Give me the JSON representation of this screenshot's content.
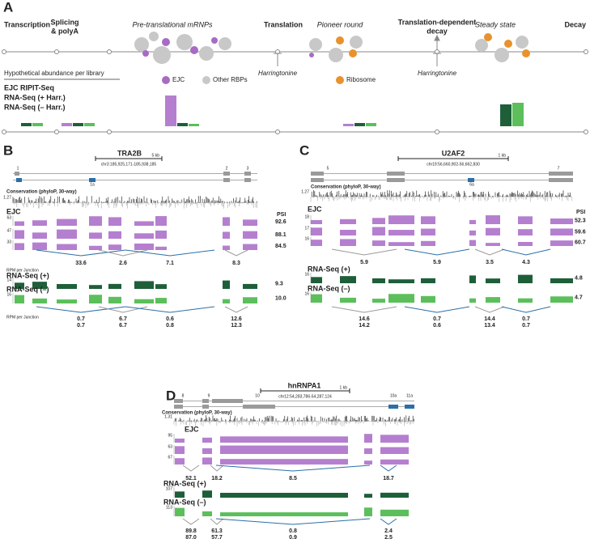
{
  "panel_a": {
    "label": "A",
    "stages": [
      [
        "Transcription"
      ],
      [
        "Splicing",
        "& polyA"
      ],
      [
        "Pre-translational mRNPs"
      ],
      [
        "Translation"
      ],
      [
        "Pioneer round"
      ],
      [
        "Translation-dependent",
        "decay"
      ],
      [
        "Steady state"
      ],
      [
        "Decay"
      ]
    ],
    "harringtonine": [
      "Harringtonine",
      "Harringtonine"
    ],
    "legend": [
      "EJC",
      "Other RBPs",
      "Ribosome"
    ],
    "abundance_title": "Hypothetical abundance per library",
    "libraries": [
      "EJC RIPIT-Seq",
      "RNA-Seq (+ Harr.)",
      "RNA-Seq (– Harr.)"
    ]
  },
  "panel_b": {
    "label": "B",
    "gene": "TRA2B",
    "scale": "5 kb",
    "coords": "chr3:185,925,171-185,938,185",
    "exons": [
      "1",
      "1a",
      "2",
      "3"
    ],
    "conservation_label": "Conservation (phyloP, 30-way)",
    "conservation_scale": "1.27",
    "ejc_label": "EJC",
    "psi_label": "PSI",
    "ejc_scales": [
      "63",
      "47",
      "33"
    ],
    "psi": [
      "92.6",
      "88.1",
      "84.5"
    ],
    "ejc_junctions": [
      "33.6",
      "2.6",
      "7.1",
      "8.3"
    ],
    "junction_label": "RPM per Junction",
    "seq_plus": {
      "label": "RNA-Seq (+)",
      "scale": "14",
      "psi": "9.3"
    },
    "seq_minus": {
      "label": "RNA-Seq (–)",
      "scale": "16",
      "psi": "10.0"
    },
    "seq_junctions": [
      [
        "0.7",
        "0.7"
      ],
      [
        "6.7",
        "6.7"
      ],
      [
        "0.6",
        "0.8"
      ],
      [
        "12.6",
        "12.3"
      ]
    ],
    "seq_junction_label": "RPM per Junction"
  },
  "panel_c": {
    "label": "C",
    "gene": "U2AF2",
    "scale": "1 kb",
    "coords": "chr19:56,660,902-56,662,830",
    "exons": [
      "5",
      "6a",
      "7"
    ],
    "conservation_label": "Conservation (phyloP, 30-way)",
    "conservation_scale": "1.27",
    "ejc_label": "EJC",
    "psi_label": "PSI",
    "ejc_scales": [
      "18",
      "17",
      "16"
    ],
    "psi": [
      "52.3",
      "59.6",
      "60.7"
    ],
    "ejc_junctions": [
      "5.9",
      "5.9",
      "3.5",
      "4.3"
    ],
    "seq_plus": {
      "label": "RNA-Seq (+)",
      "scale": "16",
      "psi": "4.8"
    },
    "seq_minus": {
      "label": "RNA-Seq (–)",
      "scale": "16",
      "psi": "4.7"
    },
    "seq_junctions": [
      [
        "14.6",
        "14.2"
      ],
      [
        "0.7",
        "0.6"
      ],
      [
        "14.4",
        "13.4"
      ],
      [
        "0.7",
        "0.7"
      ]
    ]
  },
  "panel_d": {
    "label": "D",
    "gene": "hnRNPA1",
    "scale": "1 kb",
    "coords": "chr12:54,283,786-54,287,124",
    "exons": [
      "8",
      "9",
      "10",
      "10a",
      "11a"
    ],
    "conservation_label": "Conservation (phyloP, 30-way)",
    "conservation_scale": "1.31",
    "ejc_label": "EJC",
    "ejc_scales": [
      "95",
      "63",
      "67"
    ],
    "ejc_junctions": [
      "52.1",
      "18.2",
      "8.5",
      "18.7"
    ],
    "seq_plus": {
      "label": "RNA-Seq (+)",
      "scale": "107"
    },
    "seq_minus": {
      "label": "RNA-Seq (–)",
      "scale": "113"
    },
    "seq_junctions": [
      [
        "89.8",
        "87.0"
      ],
      [
        "61.3",
        "57.7"
      ],
      [
        "0.8",
        "0.9"
      ],
      [
        "2.4",
        "2.5"
      ]
    ]
  }
}
